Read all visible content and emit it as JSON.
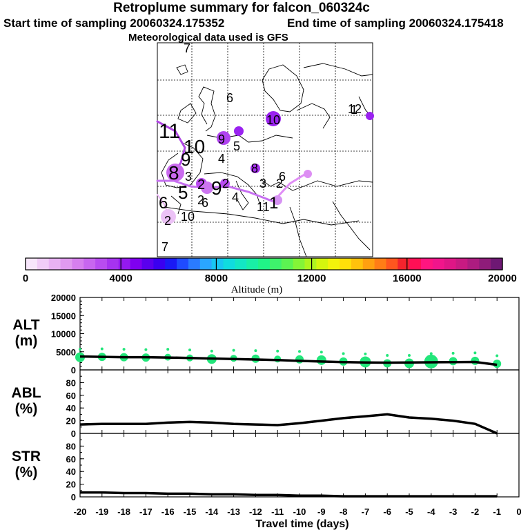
{
  "header": {
    "title": "Retroplume summary for falcon_060324c",
    "start_label": "Start time of sampling 20060324.175352",
    "end_label": "End time of sampling 20060324.175418",
    "met_label": "Meteorological data used is GFS"
  },
  "map": {
    "plume_labels": [
      {
        "text": "7",
        "color": "#8a2be2"
      },
      {
        "text": "6",
        "color": "#000000"
      },
      {
        "text": "1",
        "color": "#000000"
      },
      {
        "text": "10",
        "color": "#000000"
      },
      {
        "text": "11",
        "color": "#000000"
      },
      {
        "text": "12",
        "color": "#8a2be2"
      },
      {
        "text": "9",
        "color": "#000000"
      },
      {
        "text": "5",
        "color": "#000000"
      },
      {
        "text": "10",
        "color": "#000000"
      },
      {
        "text": "4",
        "color": "#000000"
      },
      {
        "text": "9",
        "color": "#000000"
      },
      {
        "text": "8",
        "color": "#000000"
      },
      {
        "text": "8",
        "color": "#000000"
      },
      {
        "text": "3",
        "color": "#000000"
      },
      {
        "text": "3",
        "color": "#000000"
      },
      {
        "text": "2",
        "color": "#000000"
      },
      {
        "text": "9",
        "color": "#000000"
      },
      {
        "text": "5",
        "color": "#000000"
      },
      {
        "text": "2",
        "color": "#000000"
      },
      {
        "text": "6",
        "color": "#000000"
      },
      {
        "text": "2",
        "color": "#000000"
      },
      {
        "text": "4",
        "color": "#000000"
      },
      {
        "text": "11",
        "color": "#000000"
      },
      {
        "text": "1",
        "color": "#000000"
      },
      {
        "text": "6",
        "color": "#000000"
      },
      {
        "text": "2",
        "color": "#000000"
      },
      {
        "text": "6",
        "color": "#000000"
      },
      {
        "text": "2",
        "color": "#000000"
      },
      {
        "text": "10",
        "color": "#000000"
      },
      {
        "text": "7",
        "color": "#8a2be2"
      }
    ]
  },
  "colorbar": {
    "xlabel": "Altitude (m)",
    "ticks": [
      "0",
      "4000",
      "8000",
      "12000",
      "16000",
      "20000"
    ],
    "colors": [
      "#f7e6fb",
      "#f0ccf7",
      "#e8b2f3",
      "#e09aef",
      "#d67fee",
      "#c866ef",
      "#b84cf0",
      "#a633f0",
      "#9419ef",
      "#7f00f0",
      "#5a00ee",
      "#3a00f0",
      "#1a1af5",
      "#1f4bff",
      "#2a7bff",
      "#2aa6ff",
      "#18c6f2",
      "#10dcdf",
      "#13e7c4",
      "#19efa6",
      "#20f487",
      "#3ef36c",
      "#5cf452",
      "#84f537",
      "#aef51f",
      "#d4f60e",
      "#f3f30b",
      "#ffe00a",
      "#ffc20c",
      "#ffa010",
      "#ff7d16",
      "#ff561f",
      "#f3242d",
      "#ff0f55",
      "#ff1580",
      "#f1158b",
      "#df1686",
      "#c81a82",
      "#ad1c80",
      "#8f1c7a",
      "#6e1874"
    ]
  },
  "chart_data": [
    {
      "type": "line",
      "ylabel": "ALT\n(m)",
      "ylabel_line1": "ALT",
      "ylabel_line2": "(m)",
      "xlabel": "Travel time (days)",
      "x": [
        -20,
        -19,
        -18,
        -17,
        -16,
        -15,
        -14,
        -13,
        -12,
        -11,
        -10,
        -9,
        -8,
        -7,
        -6,
        -5,
        -4,
        -3,
        -2,
        -1
      ],
      "values": [
        3700,
        3600,
        3500,
        3500,
        3400,
        3300,
        3150,
        3000,
        2850,
        2700,
        2500,
        2300,
        2150,
        2050,
        2000,
        2050,
        2100,
        2150,
        2200,
        1400
      ],
      "dots": [
        3500,
        3600,
        3500,
        3400,
        3500,
        3300,
        3000,
        3200,
        3100,
        3000,
        2900,
        2700,
        2300,
        2200,
        1800,
        1800,
        2300,
        2400,
        2500,
        1700
      ],
      "dot_sizes": [
        7,
        6,
        6,
        6,
        5,
        5,
        7,
        5,
        6,
        5,
        6,
        7,
        6,
        8,
        6,
        7,
        10,
        6,
        6,
        6
      ],
      "dot_color": "#22e67a",
      "ylim": [
        0,
        20000
      ],
      "yticks": [
        "0",
        "5000",
        "10000",
        "15000",
        "20000"
      ]
    },
    {
      "type": "line",
      "ylabel_line1": "ABL",
      "ylabel_line2": "(%)",
      "x": [
        -20,
        -19,
        -18,
        -17,
        -16,
        -15,
        -14,
        -13,
        -12,
        -11,
        -10,
        -9,
        -8,
        -7,
        -6,
        -5,
        -4,
        -3,
        -2,
        -1
      ],
      "values": [
        14,
        15,
        15,
        15,
        17,
        18,
        17,
        15,
        14,
        13,
        16,
        20,
        24,
        27,
        30,
        25,
        23,
        20,
        15,
        0
      ],
      "ylim": [
        0,
        100
      ],
      "yticks": [
        "0",
        "20",
        "40",
        "60",
        "80"
      ]
    },
    {
      "type": "line",
      "ylabel_line1": "STR",
      "ylabel_line2": "(%)",
      "x": [
        -20,
        -19,
        -18,
        -17,
        -16,
        -15,
        -14,
        -13,
        -12,
        -11,
        -10,
        -9,
        -8,
        -7,
        -6,
        -5,
        -4,
        -3,
        -2,
        -1
      ],
      "values": [
        7,
        7,
        6,
        6,
        5,
        5,
        4,
        4,
        3,
        3,
        2,
        2,
        1,
        1,
        1,
        1,
        1,
        1,
        1,
        1
      ],
      "ylim": [
        0,
        100
      ],
      "yticks": [
        "0",
        "20",
        "40",
        "60",
        "80"
      ]
    }
  ],
  "xaxis": {
    "ticks": [
      "-20",
      "-19",
      "-18",
      "-17",
      "-16",
      "-15",
      "-14",
      "-13",
      "-12",
      "-11",
      "-10",
      "-9",
      "-8",
      "-7",
      "-6",
      "-5",
      "-4",
      "-3",
      "-2",
      "-1",
      "0"
    ],
    "label": "Travel time (days)"
  }
}
